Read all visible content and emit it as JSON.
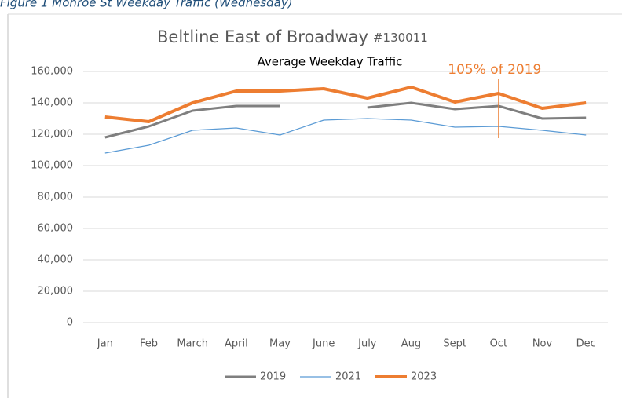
{
  "caption": "Figure 1 Monroe St Weekday Traffic (Wednesday)",
  "chart_data": {
    "type": "line",
    "title": "Beltline East of Broadway",
    "title_id": "#130011",
    "subtitle": "Average Weekday Traffic",
    "annotation": {
      "text": "105% of 2019",
      "category": "Oct",
      "color": "#ed7d31"
    },
    "categories": [
      "Jan",
      "Feb",
      "March",
      "April",
      "May",
      "June",
      "July",
      "Aug",
      "Sept",
      "Oct",
      "Nov",
      "Dec"
    ],
    "series": [
      {
        "name": "2019",
        "color": "#7f7f7f",
        "width": 3,
        "values": [
          118000,
          125000,
          135000,
          138000,
          138000,
          null,
          137000,
          140000,
          136000,
          138000,
          130000,
          130500
        ]
      },
      {
        "name": "2021",
        "color": "#5b9bd5",
        "width": 1.2,
        "values": [
          108000,
          113000,
          122500,
          124000,
          119500,
          129000,
          130000,
          129000,
          124500,
          125000,
          122500,
          119500
        ]
      },
      {
        "name": "2023",
        "color": "#ed7d31",
        "width": 4,
        "values": [
          131000,
          128000,
          140000,
          147500,
          147500,
          149000,
          143000,
          150000,
          140500,
          146000,
          136500,
          140000
        ]
      }
    ],
    "ylim": [
      0,
      160000
    ],
    "yticks": [
      {
        "value": 0,
        "label": "0"
      },
      {
        "value": 20000,
        "label": "20,000"
      },
      {
        "value": 40000,
        "label": "40,000"
      },
      {
        "value": 60000,
        "label": "60,000"
      },
      {
        "value": 80000,
        "label": "80,000"
      },
      {
        "value": 100000,
        "label": "100,000"
      },
      {
        "value": 120000,
        "label": "120,000"
      },
      {
        "value": 140000,
        "label": "140,000"
      },
      {
        "value": 160000,
        "label": "160,000"
      }
    ],
    "grid": true,
    "legend": "bottom"
  }
}
